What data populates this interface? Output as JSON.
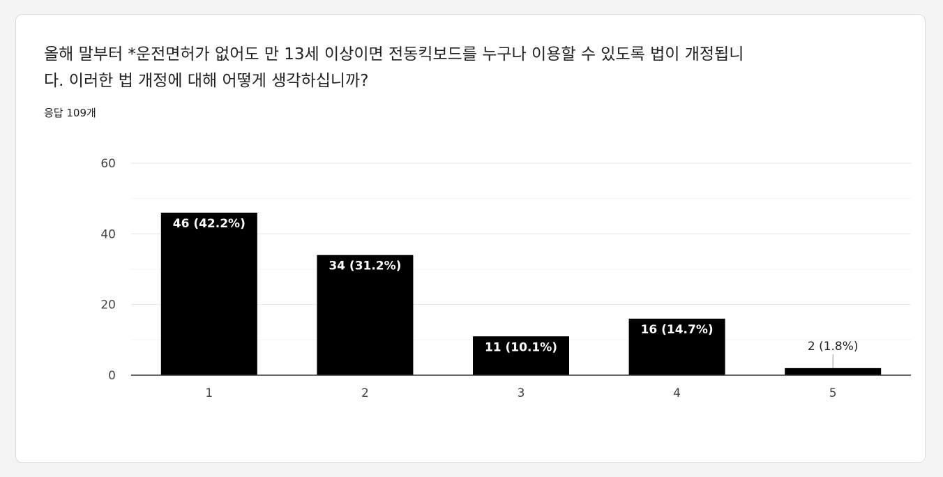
{
  "question": {
    "line1": "올해 말부터 *운전면허가 없어도 만 13세 이상이면 전동킥보드를 누구나 이용할 수 있도록 법이 개정됩니",
    "line2": "다. 이러한 법 개정에 대해 어떻게 생각하십니까?"
  },
  "response_count": "응답 109개",
  "chart_data": {
    "type": "bar",
    "categories": [
      "1",
      "2",
      "3",
      "4",
      "5"
    ],
    "values": [
      46,
      34,
      11,
      16,
      2
    ],
    "labels": [
      "46 (42.2%)",
      "34 (31.2%)",
      "11 (10.1%)",
      "16 (14.7%)",
      "2 (1.8%)"
    ],
    "y_ticks": [
      "0",
      "20",
      "40",
      "60"
    ],
    "ylim": [
      0,
      60
    ],
    "grid": true,
    "bar_color": "#000000",
    "inside_label_color": "#ffffff",
    "outside_label_color": "#202124"
  }
}
